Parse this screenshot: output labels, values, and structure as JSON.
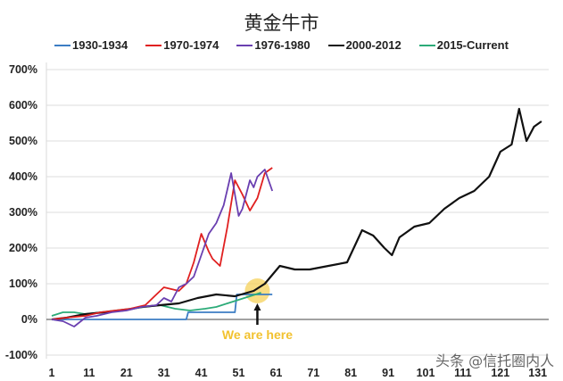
{
  "chart_data": {
    "type": "line",
    "title": "黄金牛市",
    "xlabel": "",
    "ylabel": "",
    "ylim": [
      -100,
      700
    ],
    "xlim": [
      1,
      135
    ],
    "y_ticks": [
      "700%",
      "600%",
      "500%",
      "400%",
      "300%",
      "200%",
      "100%",
      "0%",
      "-100%"
    ],
    "y_tick_values": [
      700,
      600,
      500,
      400,
      300,
      200,
      100,
      0,
      -100
    ],
    "x_ticks": [
      "1",
      "11",
      "21",
      "31",
      "41",
      "51",
      "61",
      "71",
      "81",
      "91",
      "101",
      "111",
      "121",
      "131"
    ],
    "x_tick_values": [
      1,
      11,
      21,
      31,
      41,
      51,
      61,
      71,
      81,
      91,
      101,
      111,
      121,
      131
    ],
    "grid": "horizontal",
    "legend_position": "top",
    "series": [
      {
        "name": "1930-1934",
        "color": "#3c7dc4",
        "x": [
          1,
          10,
          20,
          30,
          37,
          37.5,
          50,
          50.5,
          60
        ],
        "values": [
          0,
          0,
          0,
          0,
          0,
          20,
          20,
          70,
          70
        ]
      },
      {
        "name": "1970-1974",
        "color": "#e02020",
        "x": [
          1,
          5,
          10,
          14,
          18,
          22,
          26,
          29,
          31,
          33,
          35,
          37,
          39,
          41,
          43,
          44,
          46,
          48,
          50,
          52,
          54,
          56,
          58,
          60
        ],
        "values": [
          0,
          5,
          10,
          20,
          25,
          30,
          40,
          70,
          90,
          85,
          80,
          100,
          160,
          240,
          190,
          170,
          150,
          260,
          390,
          350,
          305,
          340,
          410,
          425
        ]
      },
      {
        "name": "1976-1980",
        "color": "#6a3fb0",
        "x": [
          1,
          4,
          7,
          10,
          13,
          17,
          21,
          25,
          29,
          31,
          33,
          35,
          37,
          39,
          41,
          43,
          45,
          47,
          49,
          51,
          52,
          54,
          55,
          56,
          58,
          60
        ],
        "values": [
          0,
          -5,
          -20,
          5,
          10,
          20,
          25,
          35,
          40,
          60,
          50,
          90,
          100,
          120,
          180,
          240,
          270,
          320,
          410,
          290,
          310,
          390,
          370,
          400,
          420,
          360
        ]
      },
      {
        "name": "2000-2012",
        "color": "#111111",
        "x": [
          1,
          5,
          10,
          15,
          20,
          25,
          30,
          35,
          40,
          45,
          50,
          55,
          58,
          62,
          66,
          70,
          75,
          80,
          84,
          87,
          90,
          92,
          94,
          96,
          98,
          102,
          106,
          110,
          114,
          118,
          121,
          124,
          126,
          128,
          130,
          132
        ],
        "values": [
          0,
          5,
          15,
          20,
          25,
          35,
          40,
          45,
          60,
          70,
          65,
          80,
          100,
          150,
          140,
          140,
          150,
          160,
          250,
          235,
          200,
          180,
          230,
          245,
          260,
          270,
          310,
          340,
          360,
          400,
          470,
          490,
          590,
          500,
          540,
          555
        ]
      },
      {
        "name": "2015-Current",
        "color": "#2bab78",
        "x": [
          1,
          4,
          7,
          10,
          14,
          18,
          22,
          26,
          30,
          34,
          38,
          42,
          45,
          48,
          51,
          54,
          57
        ],
        "values": [
          10,
          20,
          20,
          15,
          20,
          25,
          30,
          35,
          40,
          30,
          25,
          30,
          35,
          45,
          55,
          65,
          75
        ]
      }
    ],
    "annotations": [
      {
        "text": "We are here",
        "x": 56,
        "y": 75,
        "color": "#f2c230",
        "style": "arrow + highlight circle"
      }
    ]
  },
  "watermark": "头条 @信托圈内人"
}
